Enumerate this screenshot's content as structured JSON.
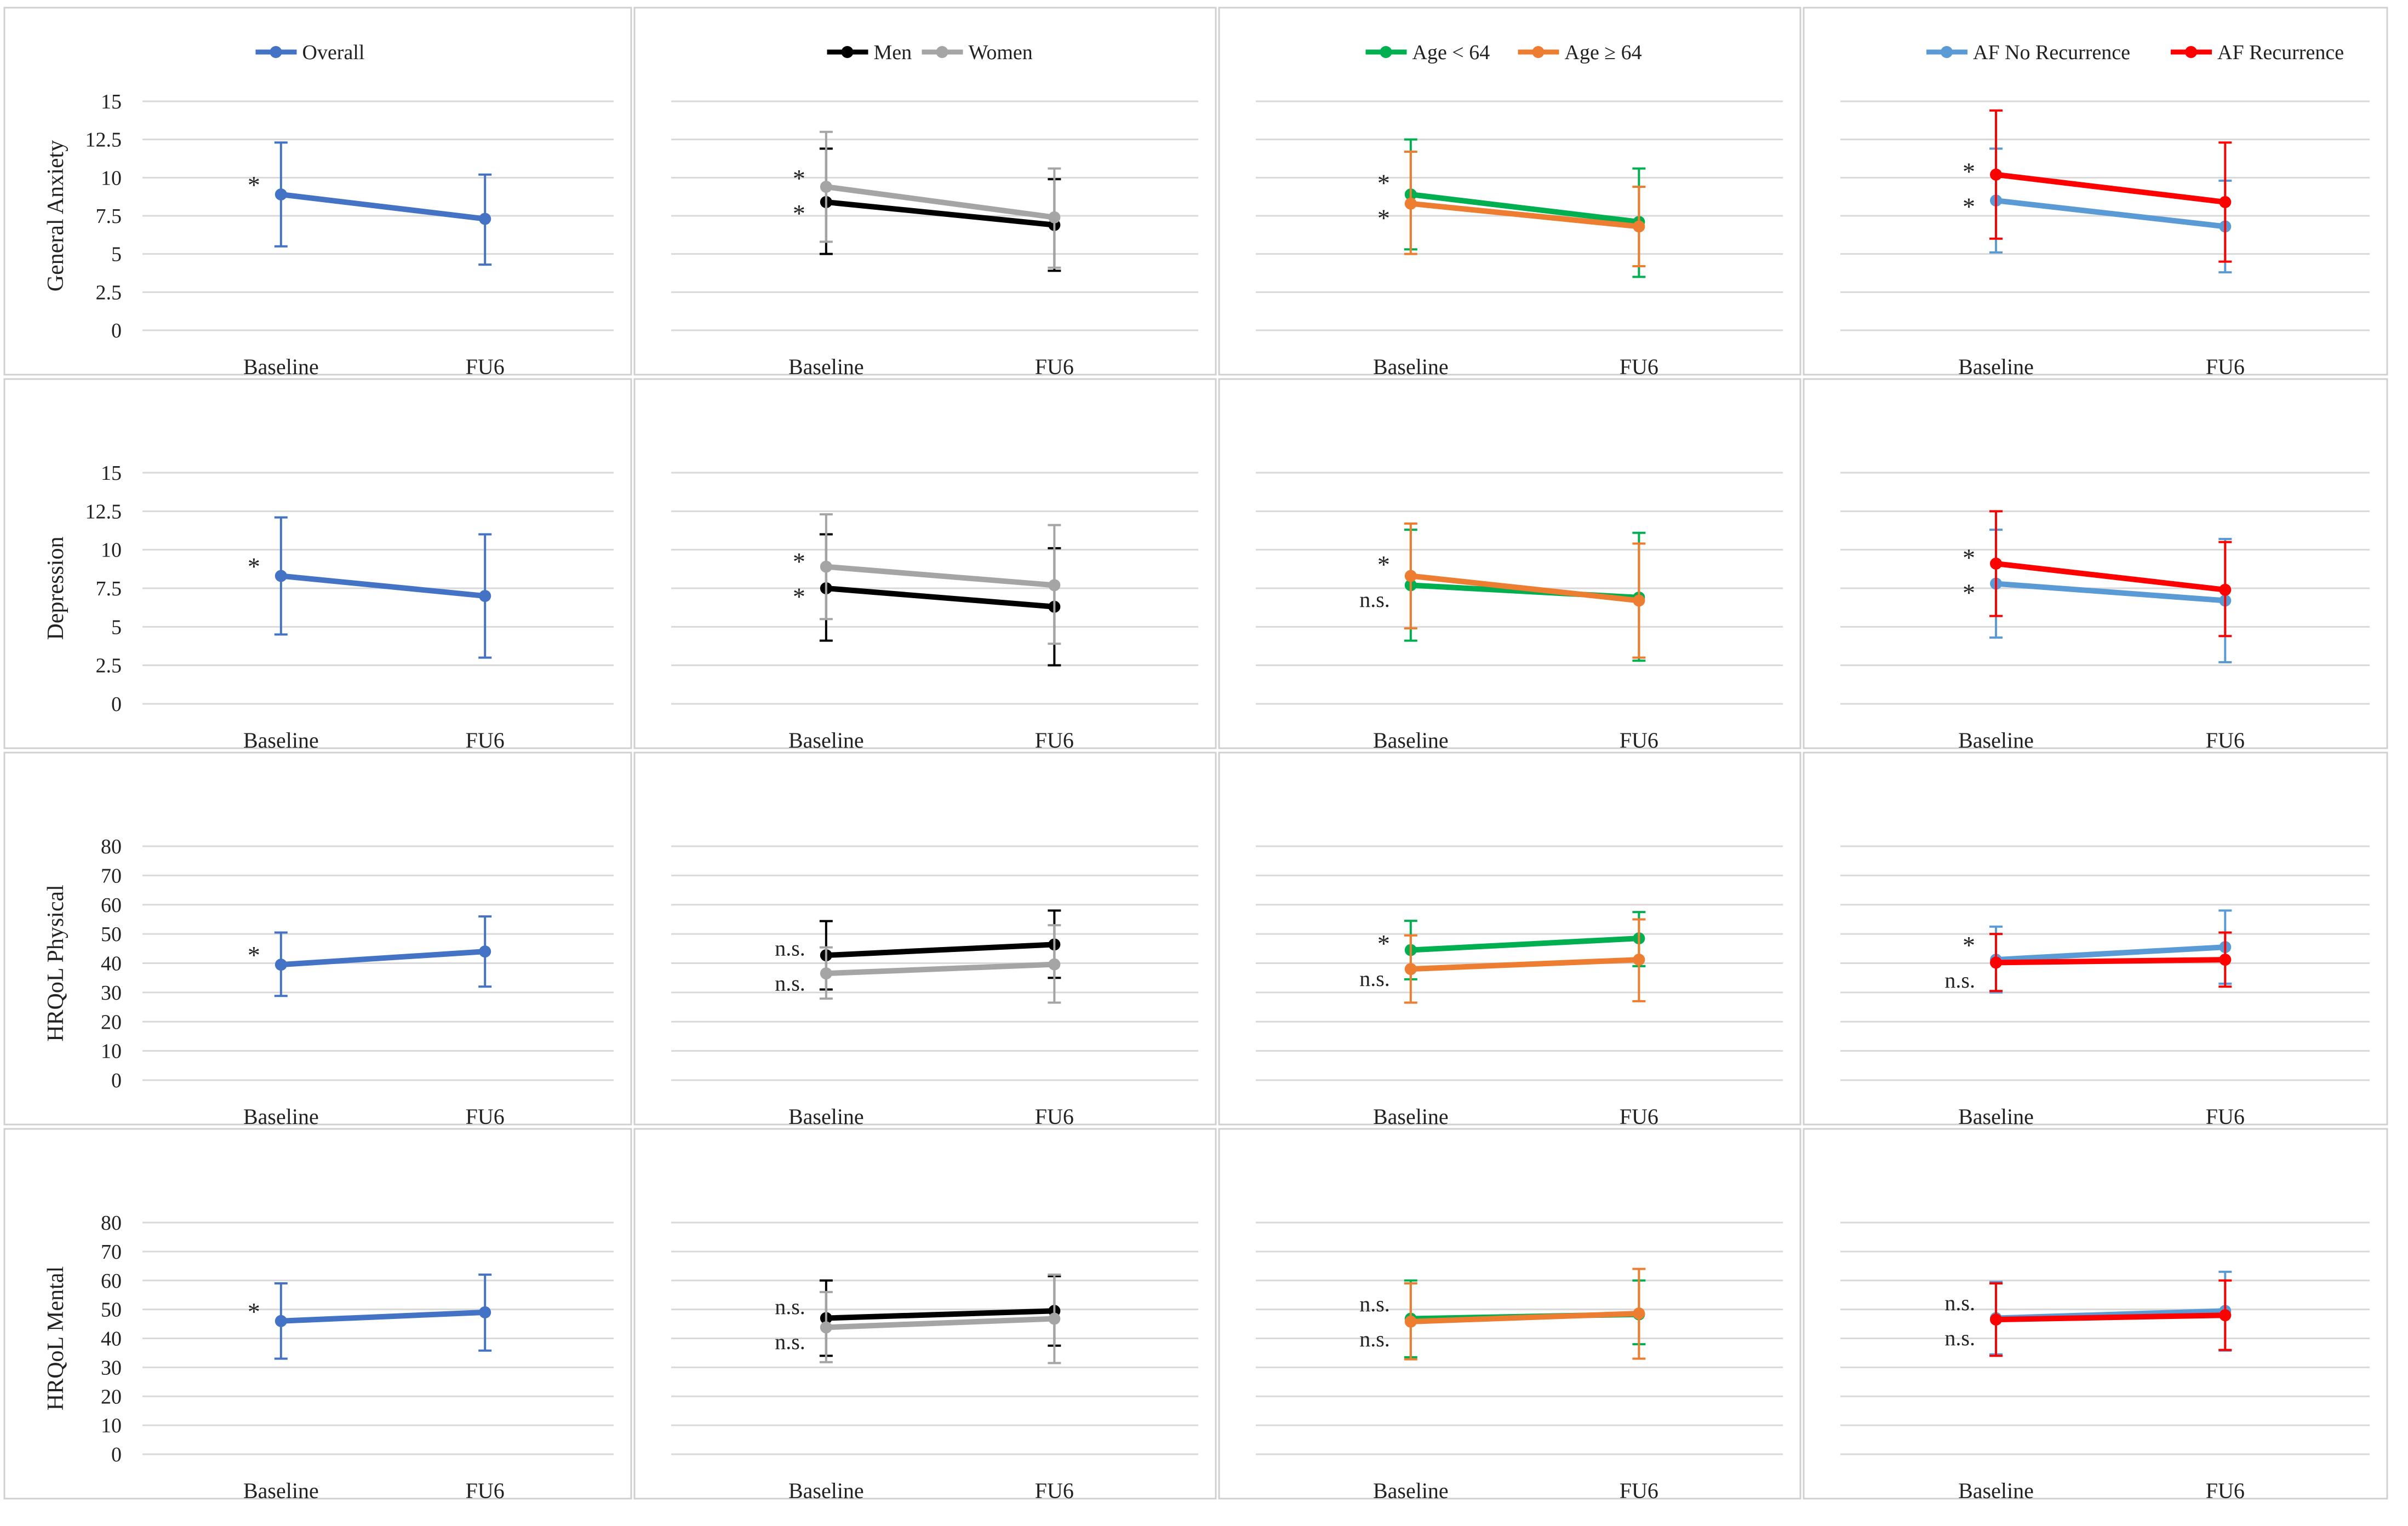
{
  "figure": {
    "layout": "4 rows x 4 columns of line charts",
    "colors": {
      "overall": "#4472C4",
      "men": "#000000",
      "women": "#A5A5A5",
      "age_under_64": "#00B050",
      "age_64_plus": "#ED7D31",
      "af_no_recurrence": "#5B9BD5",
      "af_recurrence": "#FF0000",
      "gridline": "#D9D9D9",
      "panel_border": "#D0D0D0"
    }
  },
  "chart_data": [
    {
      "type": "line",
      "row": 0,
      "col": 0,
      "ylabel": "General Anxiety",
      "categories": [
        "Baseline",
        "FU6"
      ],
      "ylim": [
        0,
        15
      ],
      "yticks": [
        "0",
        "2.5",
        "5",
        "7.5",
        "10",
        "12.5",
        "15"
      ],
      "show_yticks": true,
      "legend": "top-center",
      "series": [
        {
          "name": "Overall",
          "color": "#4472C4",
          "values": [
            8.9,
            7.3
          ],
          "err_low": [
            5.5,
            4.3
          ],
          "err_high": [
            12.3,
            10.2
          ]
        }
      ],
      "annotations": [
        "*"
      ]
    },
    {
      "type": "line",
      "row": 0,
      "col": 1,
      "ylabel": "",
      "categories": [
        "Baseline",
        "FU6"
      ],
      "ylim": [
        0,
        15
      ],
      "show_yticks": false,
      "legend": "top-center",
      "series": [
        {
          "name": "Men",
          "color": "#000000",
          "values": [
            8.4,
            6.9
          ],
          "err_low": [
            5.0,
            3.9
          ],
          "err_high": [
            11.9,
            9.9
          ]
        },
        {
          "name": "Women",
          "color": "#A5A5A5",
          "values": [
            9.4,
            7.4
          ],
          "err_low": [
            5.8,
            4.1
          ],
          "err_high": [
            13.0,
            10.6
          ]
        }
      ],
      "annotations": [
        "*",
        "*"
      ]
    },
    {
      "type": "line",
      "row": 0,
      "col": 2,
      "ylabel": "",
      "categories": [
        "Baseline",
        "FU6"
      ],
      "ylim": [
        0,
        15
      ],
      "show_yticks": false,
      "legend": "top-center",
      "series": [
        {
          "name": "Age < 64",
          "color": "#00B050",
          "values": [
            8.9,
            7.1
          ],
          "err_low": [
            5.3,
            3.5
          ],
          "err_high": [
            12.5,
            10.6
          ]
        },
        {
          "name": "Age ≥ 64",
          "color": "#ED7D31",
          "values": [
            8.3,
            6.8
          ],
          "err_low": [
            5.0,
            4.2
          ],
          "err_high": [
            11.7,
            9.4
          ]
        }
      ],
      "annotations": [
        "*",
        "*"
      ]
    },
    {
      "type": "line",
      "row": 0,
      "col": 3,
      "ylabel": "",
      "categories": [
        "Baseline",
        "FU6"
      ],
      "ylim": [
        0,
        15
      ],
      "show_yticks": false,
      "legend": "top-right",
      "series": [
        {
          "name": "AF No Recurrence",
          "color": "#5B9BD5",
          "values": [
            8.5,
            6.8
          ],
          "err_low": [
            5.1,
            3.8
          ],
          "err_high": [
            11.9,
            9.8
          ]
        },
        {
          "name": "AF Recurrence",
          "color": "#FF0000",
          "values": [
            10.2,
            8.4
          ],
          "err_low": [
            6.0,
            4.5
          ],
          "err_high": [
            14.4,
            12.3
          ]
        }
      ],
      "annotations": [
        "*",
        "*"
      ]
    },
    {
      "type": "line",
      "row": 1,
      "col": 0,
      "ylabel": "Depression",
      "categories": [
        "Baseline",
        "FU6"
      ],
      "ylim": [
        0,
        15
      ],
      "yticks": [
        "0",
        "2.5",
        "5",
        "7.5",
        "10",
        "12.5",
        "15"
      ],
      "show_yticks": true,
      "series": [
        {
          "name": "Overall",
          "color": "#4472C4",
          "values": [
            8.3,
            7.0
          ],
          "err_low": [
            4.5,
            3.0
          ],
          "err_high": [
            12.1,
            11.0
          ]
        }
      ],
      "annotations": [
        "*"
      ]
    },
    {
      "type": "line",
      "row": 1,
      "col": 1,
      "ylabel": "",
      "categories": [
        "Baseline",
        "FU6"
      ],
      "ylim": [
        0,
        15
      ],
      "show_yticks": false,
      "series": [
        {
          "name": "Men",
          "color": "#000000",
          "values": [
            7.5,
            6.3
          ],
          "err_low": [
            4.1,
            2.5
          ],
          "err_high": [
            11.0,
            10.1
          ]
        },
        {
          "name": "Women",
          "color": "#A5A5A5",
          "values": [
            8.9,
            7.7
          ],
          "err_low": [
            5.5,
            3.9
          ],
          "err_high": [
            12.3,
            11.6
          ]
        }
      ],
      "annotations": [
        "*",
        "*"
      ]
    },
    {
      "type": "line",
      "row": 1,
      "col": 2,
      "ylabel": "",
      "categories": [
        "Baseline",
        "FU6"
      ],
      "ylim": [
        0,
        15
      ],
      "show_yticks": false,
      "series": [
        {
          "name": "Age < 64",
          "color": "#00B050",
          "values": [
            7.7,
            6.9
          ],
          "err_low": [
            4.1,
            2.8
          ],
          "err_high": [
            11.3,
            11.1
          ]
        },
        {
          "name": "Age ≥ 64",
          "color": "#ED7D31",
          "values": [
            8.3,
            6.7
          ],
          "err_low": [
            4.9,
            3.0
          ],
          "err_high": [
            11.7,
            10.4
          ]
        }
      ],
      "annotations": [
        "*",
        "n.s."
      ]
    },
    {
      "type": "line",
      "row": 1,
      "col": 3,
      "ylabel": "",
      "categories": [
        "Baseline",
        "FU6"
      ],
      "ylim": [
        0,
        15
      ],
      "show_yticks": false,
      "series": [
        {
          "name": "AF No Recurrence",
          "color": "#5B9BD5",
          "values": [
            7.8,
            6.7
          ],
          "err_low": [
            4.3,
            2.7
          ],
          "err_high": [
            11.3,
            10.7
          ]
        },
        {
          "name": "AF Recurrence",
          "color": "#FF0000",
          "values": [
            9.1,
            7.4
          ],
          "err_low": [
            5.7,
            4.4
          ],
          "err_high": [
            12.5,
            10.5
          ]
        }
      ],
      "annotations": [
        "*",
        "*"
      ]
    },
    {
      "type": "line",
      "row": 2,
      "col": 0,
      "ylabel": "HRQoL Physical",
      "categories": [
        "Baseline",
        "FU6"
      ],
      "ylim": [
        0,
        80
      ],
      "yticks": [
        "0",
        "10",
        "20",
        "30",
        "40",
        "50",
        "60",
        "70",
        "80"
      ],
      "show_yticks": true,
      "series": [
        {
          "name": "Overall",
          "color": "#4472C4",
          "values": [
            39.5,
            44.0
          ],
          "err_low": [
            28.8,
            32.0
          ],
          "err_high": [
            50.5,
            56.0
          ]
        }
      ],
      "annotations": [
        "*"
      ]
    },
    {
      "type": "line",
      "row": 2,
      "col": 1,
      "ylabel": "",
      "categories": [
        "Baseline",
        "FU6"
      ],
      "ylim": [
        0,
        80
      ],
      "show_yticks": false,
      "series": [
        {
          "name": "Men",
          "color": "#000000",
          "values": [
            42.7,
            46.4
          ],
          "err_low": [
            31.0,
            35.0
          ],
          "err_high": [
            54.4,
            58.0
          ]
        },
        {
          "name": "Women",
          "color": "#A5A5A5",
          "values": [
            36.5,
            39.6
          ],
          "err_low": [
            27.9,
            26.5
          ],
          "err_high": [
            45.4,
            53.0
          ]
        }
      ],
      "annotations": [
        "n.s.",
        "n.s."
      ]
    },
    {
      "type": "line",
      "row": 2,
      "col": 2,
      "ylabel": "",
      "categories": [
        "Baseline",
        "FU6"
      ],
      "ylim": [
        0,
        80
      ],
      "show_yticks": false,
      "series": [
        {
          "name": "Age < 64",
          "color": "#00B050",
          "values": [
            44.5,
            48.5
          ],
          "err_low": [
            34.5,
            39.0
          ],
          "err_high": [
            54.5,
            57.5
          ]
        },
        {
          "name": "Age ≥ 64",
          "color": "#ED7D31",
          "values": [
            38.0,
            41.2
          ],
          "err_low": [
            26.5,
            27.0
          ],
          "err_high": [
            49.5,
            55.0
          ]
        }
      ],
      "annotations": [
        "*",
        "n.s."
      ]
    },
    {
      "type": "line",
      "row": 2,
      "col": 3,
      "ylabel": "",
      "categories": [
        "Baseline",
        "FU6"
      ],
      "ylim": [
        0,
        80
      ],
      "show_yticks": false,
      "series": [
        {
          "name": "AF No Recurrence",
          "color": "#5B9BD5",
          "values": [
            41.2,
            45.5
          ],
          "err_low": [
            30.0,
            33.0
          ],
          "err_high": [
            52.5,
            58.0
          ]
        },
        {
          "name": "AF Recurrence",
          "color": "#FF0000",
          "values": [
            40.2,
            41.2
          ],
          "err_low": [
            30.5,
            32.0
          ],
          "err_high": [
            50.0,
            50.5
          ]
        }
      ],
      "annotations": [
        "*",
        "n.s."
      ]
    },
    {
      "type": "line",
      "row": 3,
      "col": 0,
      "ylabel": "HRQoL Mental",
      "categories": [
        "Baseline",
        "FU6"
      ],
      "ylim": [
        0,
        80
      ],
      "yticks": [
        "0",
        "10",
        "20",
        "30",
        "40",
        "50",
        "60",
        "70",
        "80"
      ],
      "show_yticks": true,
      "series": [
        {
          "name": "Overall",
          "color": "#4472C4",
          "values": [
            46.0,
            49.0
          ],
          "err_low": [
            33.0,
            35.8
          ],
          "err_high": [
            59.0,
            62.0
          ]
        }
      ],
      "annotations": [
        "*"
      ]
    },
    {
      "type": "line",
      "row": 3,
      "col": 1,
      "ylabel": "",
      "categories": [
        "Baseline",
        "FU6"
      ],
      "ylim": [
        0,
        80
      ],
      "show_yticks": false,
      "series": [
        {
          "name": "Men",
          "color": "#000000",
          "values": [
            47.0,
            49.5
          ],
          "err_low": [
            34.0,
            37.5
          ],
          "err_high": [
            60.0,
            61.5
          ]
        },
        {
          "name": "Women",
          "color": "#A5A5A5",
          "values": [
            43.8,
            46.8
          ],
          "err_low": [
            31.8,
            31.5
          ],
          "err_high": [
            56.0,
            62.0
          ]
        }
      ],
      "annotations": [
        "n.s.",
        "n.s."
      ]
    },
    {
      "type": "line",
      "row": 3,
      "col": 2,
      "ylabel": "",
      "categories": [
        "Baseline",
        "FU6"
      ],
      "ylim": [
        0,
        80
      ],
      "show_yticks": false,
      "series": [
        {
          "name": "Age < 64",
          "color": "#00B050",
          "values": [
            46.8,
            48.3
          ],
          "err_low": [
            33.5,
            38.0
          ],
          "err_high": [
            60.0,
            60.0
          ]
        },
        {
          "name": "Age ≥ 64",
          "color": "#ED7D31",
          "values": [
            45.8,
            48.6
          ],
          "err_low": [
            32.8,
            33.0
          ],
          "err_high": [
            59.0,
            64.0
          ]
        }
      ],
      "annotations": [
        "n.s.",
        "n.s."
      ]
    },
    {
      "type": "line",
      "row": 3,
      "col": 3,
      "ylabel": "",
      "categories": [
        "Baseline",
        "FU6"
      ],
      "ylim": [
        0,
        80
      ],
      "show_yticks": false,
      "series": [
        {
          "name": "AF No Recurrence",
          "color": "#5B9BD5",
          "values": [
            47.0,
            49.5
          ],
          "err_low": [
            34.5,
            35.8
          ],
          "err_high": [
            59.5,
            63.0
          ]
        },
        {
          "name": "AF Recurrence",
          "color": "#FF0000",
          "values": [
            46.5,
            48.0
          ],
          "err_low": [
            34.0,
            36.0
          ],
          "err_high": [
            59.0,
            60.0
          ]
        }
      ],
      "annotations": [
        "n.s.",
        "n.s."
      ]
    }
  ]
}
